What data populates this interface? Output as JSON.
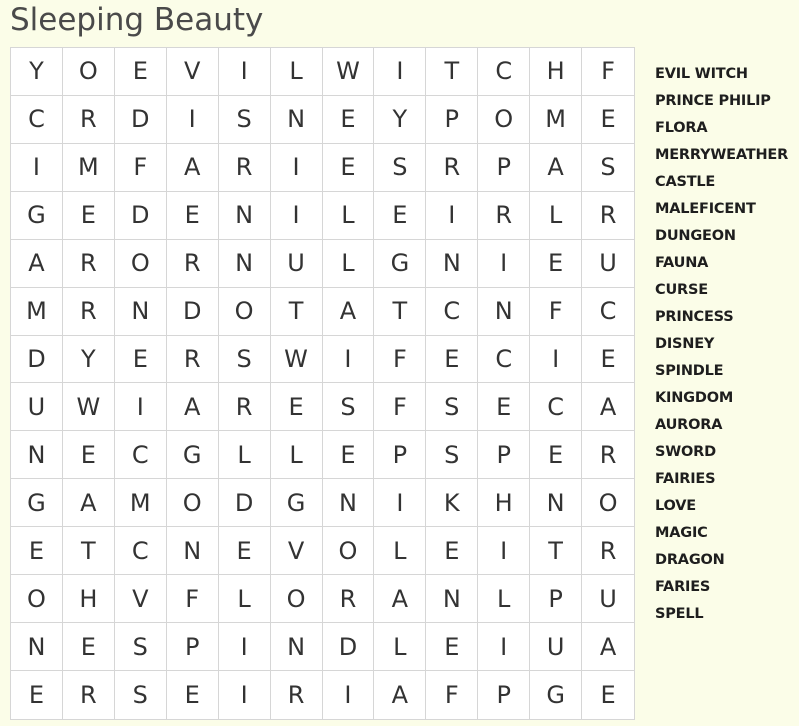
{
  "title": "Sleeping Beauty",
  "grid": [
    [
      "Y",
      "O",
      "E",
      "V",
      "I",
      "L",
      "W",
      "I",
      "T",
      "C",
      "H",
      "F"
    ],
    [
      "C",
      "R",
      "D",
      "I",
      "S",
      "N",
      "E",
      "Y",
      "P",
      "O",
      "M",
      "E"
    ],
    [
      "I",
      "M",
      "F",
      "A",
      "R",
      "I",
      "E",
      "S",
      "R",
      "P",
      "A",
      "S"
    ],
    [
      "G",
      "E",
      "D",
      "E",
      "N",
      "I",
      "L",
      "E",
      "I",
      "R",
      "L",
      "R"
    ],
    [
      "A",
      "R",
      "O",
      "R",
      "N",
      "U",
      "L",
      "G",
      "N",
      "I",
      "E",
      "U"
    ],
    [
      "M",
      "R",
      "N",
      "D",
      "O",
      "T",
      "A",
      "T",
      "C",
      "N",
      "F",
      "C"
    ],
    [
      "D",
      "Y",
      "E",
      "R",
      "S",
      "W",
      "I",
      "F",
      "E",
      "C",
      "I",
      "E"
    ],
    [
      "U",
      "W",
      "I",
      "A",
      "R",
      "E",
      "S",
      "F",
      "S",
      "E",
      "C",
      "A"
    ],
    [
      "N",
      "E",
      "C",
      "G",
      "L",
      "L",
      "E",
      "P",
      "S",
      "P",
      "E",
      "R"
    ],
    [
      "G",
      "A",
      "M",
      "O",
      "D",
      "G",
      "N",
      "I",
      "K",
      "H",
      "N",
      "O"
    ],
    [
      "E",
      "T",
      "C",
      "N",
      "E",
      "V",
      "O",
      "L",
      "E",
      "I",
      "T",
      "R"
    ],
    [
      "O",
      "H",
      "V",
      "F",
      "L",
      "O",
      "R",
      "A",
      "N",
      "L",
      "P",
      "U"
    ],
    [
      "N",
      "E",
      "S",
      "P",
      "I",
      "N",
      "D",
      "L",
      "E",
      "I",
      "U",
      "A"
    ],
    [
      "E",
      "R",
      "S",
      "E",
      "I",
      "R",
      "I",
      "A",
      "F",
      "P",
      "G",
      "E"
    ]
  ],
  "words": [
    "EVIL WITCH",
    "PRINCE PHILIP",
    "FLORA",
    "MERRYWEATHER",
    "CASTLE",
    "MALEFICENT",
    "DUNGEON",
    "FAUNA",
    "CURSE",
    "PRINCESS",
    "DISNEY",
    "SPINDLE",
    "KINGDOM",
    "AURORA",
    "SWORD",
    "FAIRIES",
    "LOVE",
    "MAGIC",
    "DRAGON",
    "FARIES",
    "SPELL"
  ]
}
